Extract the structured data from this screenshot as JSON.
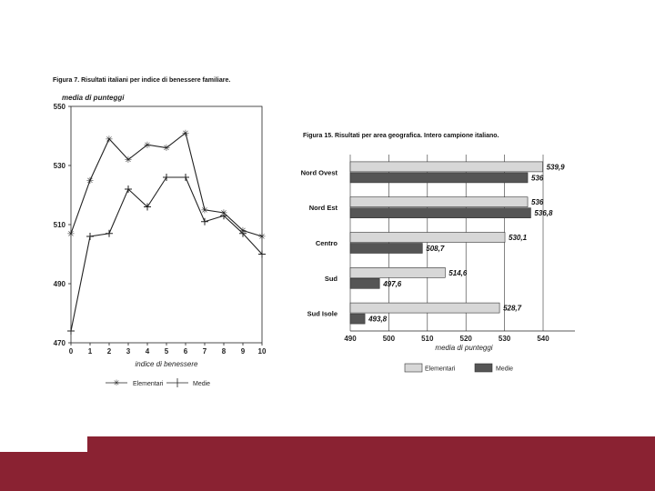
{
  "colors": {
    "bar_elementari_fill": "#d7d7d7",
    "bar_media_fill": "#555555",
    "footer": "#8a2232",
    "line": "#222222"
  },
  "chart_data": [
    {
      "type": "line",
      "title": "Figura 7. Risultati italiani per indice di benessere familiare.",
      "ylabel": "media di punteggi",
      "xlabel": "indice di benessere",
      "x": [
        0,
        1,
        2,
        3,
        4,
        5,
        6,
        7,
        8,
        9,
        10
      ],
      "ylim": [
        470,
        550
      ],
      "yticks": [
        470,
        490,
        510,
        530,
        550
      ],
      "xticks": [
        0,
        1,
        2,
        3,
        4,
        5,
        6,
        7,
        8,
        9,
        10
      ],
      "series": [
        {
          "name": "Elementari",
          "marker": "asterisk",
          "values": [
            507,
            525,
            539,
            532,
            537,
            536,
            541,
            515,
            514,
            508,
            506
          ]
        },
        {
          "name": "Medie",
          "marker": "plus",
          "values": [
            474,
            506,
            507,
            522,
            516,
            526,
            526,
            511,
            513,
            507,
            500
          ]
        }
      ]
    },
    {
      "type": "bar",
      "orientation": "horizontal",
      "title": "Figura 15. Risultati per area geografica. Intero campione italiano.",
      "xlabel": "media di punteggi",
      "xlim": [
        490,
        540
      ],
      "xticks": [
        490,
        500,
        510,
        520,
        530,
        540
      ],
      "categories": [
        "Nord Ovest",
        "Nord Est",
        "Centro",
        "Sud",
        "Sud Isole"
      ],
      "series": [
        {
          "name": "Elementari",
          "values": [
            539.9,
            536,
            530.1,
            514.6,
            528.7
          ],
          "labels": [
            "539,9",
            "536",
            "530,1",
            "514,6",
            "528,7"
          ]
        },
        {
          "name": "Medie",
          "values": [
            536,
            536.8,
            508.7,
            497.6,
            493.8
          ],
          "labels": [
            "536",
            "536,8",
            "508,7",
            "497,6",
            "493,8"
          ]
        }
      ]
    }
  ]
}
